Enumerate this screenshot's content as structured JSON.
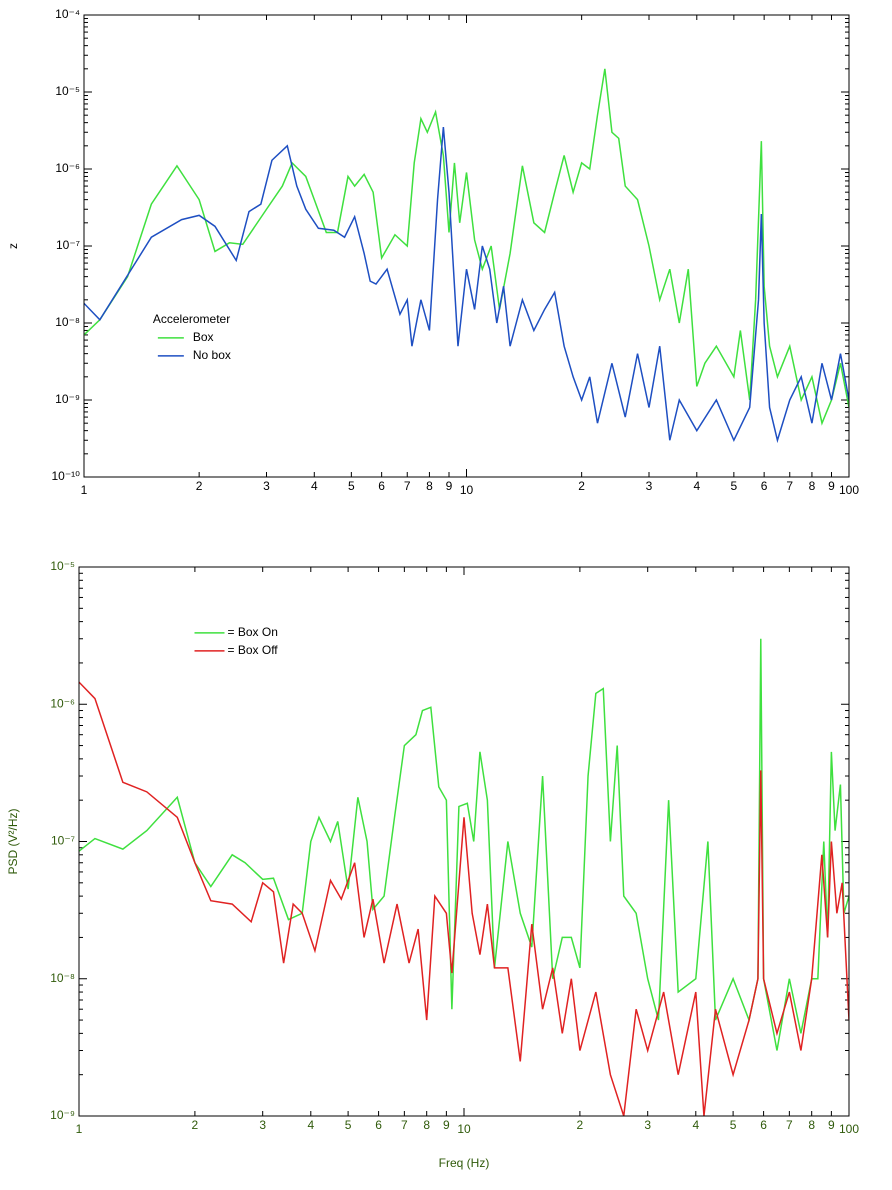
{
  "chart_data": [
    {
      "type": "line",
      "ylabel": "z",
      "log_x": true,
      "log_y": true,
      "xlim": [
        1,
        100
      ],
      "ylim": [
        1e-10,
        0.0001
      ],
      "xticks": [
        1,
        2,
        3,
        4,
        5,
        6,
        7,
        8,
        9,
        10,
        {
          "value": 20,
          "label": "2"
        },
        {
          "value": 30,
          "label": "3"
        },
        {
          "value": 40,
          "label": "4"
        },
        {
          "value": 50,
          "label": "5"
        },
        {
          "value": 60,
          "label": "6"
        },
        {
          "value": 70,
          "label": "7"
        },
        {
          "value": 80,
          "label": "8"
        },
        {
          "value": 90,
          "label": "9"
        },
        100
      ],
      "yticks": [
        {
          "value": 1e-10,
          "label": "10⁻¹⁰"
        },
        {
          "value": 1e-09,
          "label": "10⁻⁹"
        },
        {
          "value": 1e-08,
          "label": "10⁻⁸"
        },
        {
          "value": 1e-07,
          "label": "10⁻⁷"
        },
        {
          "value": 1e-06,
          "label": "10⁻⁶"
        },
        {
          "value": 1e-05,
          "label": "10⁻⁵"
        },
        {
          "value": 0.0001,
          "label": "10⁻⁴"
        }
      ],
      "tick_color": "#000000",
      "legend_title": "Accelerometer",
      "legend_loc": "lower left",
      "series": [
        {
          "name": "Box",
          "color": "#3fe03f",
          "x": [
            1,
            1.1,
            1.3,
            1.5,
            1.75,
            2,
            2.2,
            2.4,
            2.6,
            3,
            3.3,
            3.5,
            3.8,
            4,
            4.3,
            4.6,
            4.9,
            5.1,
            5.4,
            5.7,
            6,
            6.5,
            7,
            7.3,
            7.6,
            7.9,
            8.3,
            8.7,
            9,
            9.3,
            9.6,
            10,
            10.5,
            11,
            11.6,
            12.2,
            13,
            14,
            15,
            16,
            17,
            18,
            19,
            20,
            21,
            22,
            23,
            24,
            25,
            26,
            28,
            30,
            32,
            34,
            36,
            38,
            40,
            42,
            45,
            50,
            52,
            55,
            57,
            59,
            60,
            62,
            65,
            70,
            75,
            80,
            85,
            90,
            95,
            100
          ],
          "values": [
            7e-09,
            1.1e-08,
            4e-08,
            3.5e-07,
            1.1e-06,
            4e-07,
            8.5e-08,
            1.1e-07,
            1.05e-07,
            3e-07,
            6e-07,
            1.2e-06,
            8e-07,
            4e-07,
            1.5e-07,
            1.5e-07,
            8e-07,
            6e-07,
            8.5e-07,
            5e-07,
            7e-08,
            1.4e-07,
            1e-07,
            1.2e-06,
            4.5e-06,
            3e-06,
            5.5e-06,
            1.5e-06,
            1.5e-07,
            1.2e-06,
            2e-07,
            9e-07,
            1.2e-07,
            5e-08,
            1e-07,
            1.5e-08,
            8e-08,
            1.1e-06,
            2e-07,
            1.5e-07,
            5e-07,
            1.5e-06,
            5e-07,
            1.2e-06,
            1e-06,
            5e-06,
            2e-05,
            3e-06,
            2.5e-06,
            6e-07,
            4e-07,
            1e-07,
            2e-08,
            5e-08,
            1e-08,
            5e-08,
            1.5e-09,
            3e-09,
            5e-09,
            2e-09,
            8e-09,
            1e-09,
            2e-08,
            2.3e-06,
            3e-08,
            5e-09,
            2e-09,
            5e-09,
            1e-09,
            2e-09,
            5e-10,
            1e-09,
            3e-09,
            8e-10
          ]
        },
        {
          "name": "No box",
          "color": "#1e4fc2",
          "x": [
            1,
            1.1,
            1.5,
            1.8,
            2,
            2.2,
            2.5,
            2.7,
            2.9,
            3.1,
            3.4,
            3.6,
            3.8,
            4.1,
            4.5,
            4.8,
            5.1,
            5.4,
            5.6,
            5.8,
            6.2,
            6.7,
            7,
            7.2,
            7.6,
            8,
            8.4,
            8.7,
            9,
            9.5,
            10,
            10.5,
            11,
            11.5,
            12,
            12.5,
            13,
            14,
            15,
            16,
            17,
            18,
            19,
            20,
            21,
            22,
            24,
            26,
            28,
            30,
            32,
            34,
            36,
            40,
            45,
            50,
            55,
            58,
            59,
            60,
            62,
            65,
            70,
            75,
            80,
            85,
            90,
            95,
            100
          ],
          "values": [
            1.8e-08,
            1.1e-08,
            1.3e-07,
            2.2e-07,
            2.5e-07,
            1.8e-07,
            6.5e-08,
            2.8e-07,
            3.5e-07,
            1.3e-06,
            2e-06,
            6e-07,
            3e-07,
            1.7e-07,
            1.6e-07,
            1.3e-07,
            2.4e-07,
            8e-08,
            3.5e-08,
            3.2e-08,
            5e-08,
            1.3e-08,
            2e-08,
            5e-09,
            2e-08,
            8e-09,
            4e-07,
            3.5e-06,
            5e-07,
            5e-09,
            5e-08,
            1.5e-08,
            1e-07,
            5e-08,
            1e-08,
            3e-08,
            5e-09,
            2e-08,
            8e-09,
            1.5e-08,
            2.5e-08,
            5e-09,
            2e-09,
            1e-09,
            2e-09,
            5e-10,
            3e-09,
            6e-10,
            4e-09,
            8e-10,
            5e-09,
            3e-10,
            1e-09,
            4e-10,
            1e-09,
            3e-10,
            8e-10,
            2e-08,
            2.6e-07,
            1e-08,
            8e-10,
            3e-10,
            1e-09,
            2e-09,
            5e-10,
            3e-09,
            1e-09,
            4e-09,
            1e-09
          ]
        }
      ]
    },
    {
      "type": "line",
      "ylabel": "PSD (V²/Hz)",
      "xlabel": "Freq (Hz)",
      "log_x": true,
      "log_y": true,
      "xlim": [
        1,
        100
      ],
      "ylim": [
        1e-09,
        1e-05
      ],
      "xticks": [
        1,
        2,
        3,
        4,
        5,
        6,
        7,
        8,
        9,
        10,
        {
          "value": 20,
          "label": "2"
        },
        {
          "value": 30,
          "label": "3"
        },
        {
          "value": 40,
          "label": "4"
        },
        {
          "value": 50,
          "label": "5"
        },
        {
          "value": 60,
          "label": "6"
        },
        {
          "value": 70,
          "label": "7"
        },
        {
          "value": 80,
          "label": "8"
        },
        {
          "value": 90,
          "label": "9"
        },
        100
      ],
      "yticks": [
        {
          "value": 1e-09,
          "label": "10⁻⁹"
        },
        {
          "value": 1e-08,
          "label": "10⁻⁸"
        },
        {
          "value": 1e-07,
          "label": "10⁻⁷"
        },
        {
          "value": 1e-06,
          "label": "10⁻⁶"
        },
        {
          "value": 1e-05,
          "label": "10⁻⁵"
        }
      ],
      "tick_color": "#2f5a0a",
      "legend_loc": "upper left",
      "series": [
        {
          "name": "= Box On",
          "color": "#3fe03f",
          "x": [
            1,
            1.1,
            1.3,
            1.5,
            1.8,
            2,
            2.2,
            2.5,
            2.7,
            3,
            3.2,
            3.5,
            3.8,
            4,
            4.2,
            4.5,
            4.7,
            5,
            5.3,
            5.6,
            5.8,
            6.2,
            6.6,
            7,
            7.5,
            7.8,
            8.2,
            8.6,
            9,
            9.3,
            9.7,
            10.2,
            10.6,
            11,
            11.5,
            12,
            13,
            14,
            15,
            16,
            17,
            18,
            19,
            20,
            21,
            22,
            23,
            24,
            25,
            26,
            28,
            30,
            32,
            34,
            36,
            40,
            43,
            45,
            50,
            55,
            58,
            59,
            60,
            65,
            70,
            75,
            80,
            83,
            86,
            88,
            90,
            92,
            95,
            97,
            100
          ],
          "values": [
            8.5e-08,
            1.05e-07,
            8.8e-08,
            1.2e-07,
            2.1e-07,
            7e-08,
            4.7e-08,
            8e-08,
            7e-08,
            5.3e-08,
            5.4e-08,
            2.7e-08,
            3e-08,
            1e-07,
            1.5e-07,
            1e-07,
            1.4e-07,
            4.5e-08,
            2.1e-07,
            1e-07,
            3.2e-08,
            4e-08,
            1.5e-07,
            5e-07,
            6e-07,
            9e-07,
            9.5e-07,
            2.5e-07,
            2e-07,
            6e-09,
            1.8e-07,
            1.9e-07,
            1e-07,
            4.5e-07,
            2e-07,
            1.2e-08,
            1e-07,
            3e-08,
            1.7e-08,
            3e-07,
            1e-08,
            2e-08,
            2e-08,
            1.2e-08,
            3e-07,
            1.2e-06,
            1.3e-06,
            1e-07,
            5e-07,
            4e-08,
            3e-08,
            1e-08,
            5e-09,
            2e-07,
            8e-09,
            1e-08,
            1e-07,
            5e-09,
            1e-08,
            5e-09,
            1e-08,
            3e-06,
            1e-08,
            3e-09,
            1e-08,
            4e-09,
            1e-08,
            1e-08,
            1e-07,
            2e-08,
            4.5e-07,
            1.2e-07,
            2.6e-07,
            3e-08,
            4e-08
          ]
        },
        {
          "name": "= Box Off",
          "color": "#e02222",
          "x": [
            1,
            1.1,
            1.3,
            1.5,
            1.8,
            2,
            2.2,
            2.5,
            2.8,
            3,
            3.2,
            3.4,
            3.6,
            3.8,
            4.1,
            4.5,
            4.8,
            5.2,
            5.5,
            5.8,
            6.2,
            6.7,
            7.2,
            7.6,
            8,
            8.4,
            9,
            9.3,
            10,
            10.5,
            11,
            11.5,
            12,
            13,
            14,
            15,
            16,
            17,
            18,
            19,
            20,
            22,
            24,
            26,
            28,
            30,
            33,
            36,
            40,
            42,
            45,
            50,
            55,
            58,
            59,
            60,
            65,
            70,
            75,
            80,
            85,
            88,
            90,
            93,
            96,
            100
          ],
          "values": [
            1.45e-06,
            1.1e-06,
            2.7e-07,
            2.3e-07,
            1.5e-07,
            7e-08,
            3.7e-08,
            3.5e-08,
            2.6e-08,
            5e-08,
            4.3e-08,
            1.3e-08,
            3.5e-08,
            3e-08,
            1.6e-08,
            5.2e-08,
            3.8e-08,
            7e-08,
            2e-08,
            3.8e-08,
            1.3e-08,
            3.5e-08,
            1.3e-08,
            2.3e-08,
            5e-09,
            4e-08,
            3e-08,
            1.1e-08,
            1.5e-07,
            3e-08,
            1.5e-08,
            3.5e-08,
            1.2e-08,
            1.2e-08,
            2.5e-09,
            2.5e-08,
            6e-09,
            1.2e-08,
            4e-09,
            1e-08,
            3e-09,
            8e-09,
            2e-09,
            1e-09,
            6e-09,
            3e-09,
            8e-09,
            2e-09,
            8e-09,
            1e-09,
            6e-09,
            2e-09,
            5e-09,
            1e-08,
            3.3e-07,
            1e-08,
            4e-09,
            8e-09,
            3e-09,
            1e-08,
            8e-08,
            2e-08,
            1e-07,
            3e-08,
            5e-08,
            5e-09
          ]
        }
      ]
    }
  ]
}
